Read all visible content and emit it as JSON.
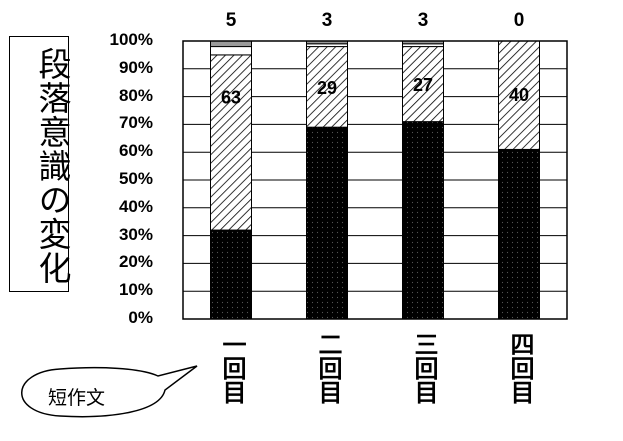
{
  "title": "段落意識の変化",
  "bubble_text": "短作文",
  "chart_data": {
    "type": "bar",
    "stacked": true,
    "normalized": true,
    "categories": [
      "一回目",
      "二回目",
      "三回目",
      "四回目"
    ],
    "series": [
      {
        "values": [
          32,
          69,
          71,
          61
        ],
        "pattern": "black-dotted"
      },
      {
        "values": [
          63,
          29,
          27,
          40
        ],
        "pattern": "hatched"
      },
      {
        "values": [
          3,
          1,
          1,
          0
        ],
        "pattern": "white"
      },
      {
        "values": [
          2,
          1,
          1,
          0
        ],
        "pattern": "gray"
      }
    ],
    "inner_labels": [
      "63",
      "29",
      "27",
      "40"
    ],
    "top_labels": [
      "5",
      "3",
      "3",
      "0"
    ],
    "ylim": [
      0,
      100
    ],
    "yticks": [
      "0%",
      "10%",
      "20%",
      "30%",
      "40%",
      "50%",
      "60%",
      "70%",
      "80%",
      "90%",
      "100%"
    ],
    "grid": true,
    "colors": {
      "bar_fill": "#000000",
      "hatch": "#000000",
      "background": "#ffffff"
    }
  }
}
